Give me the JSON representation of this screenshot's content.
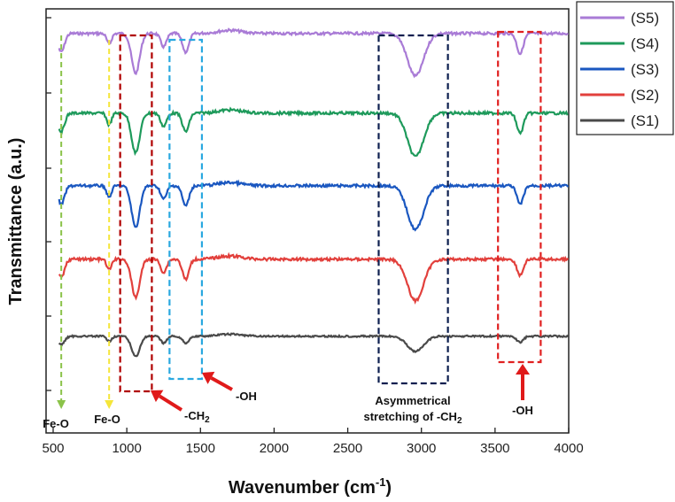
{
  "chart_data": {
    "type": "line",
    "xlabel": "Wavenumber (cm",
    "xlabel_sup": "-1",
    "xlabel_suffix": ")",
    "ylabel": "Transmittance (a.u.)",
    "xlim": [
      500,
      4000
    ],
    "xticks": [
      500,
      1000,
      1500,
      2000,
      2500,
      3000,
      3500,
      4000
    ],
    "y_tick_labels": "none",
    "legend_position": "top-right",
    "series": [
      {
        "name": "(S5)",
        "color": "#a97bd6",
        "baseline": 1.02,
        "bands": [
          [
            555,
            0.35,
            22
          ],
          [
            880,
            0.2,
            16
          ],
          [
            1060,
            0.75,
            28
          ],
          [
            1250,
            0.25,
            20
          ],
          [
            1400,
            0.35,
            22
          ],
          [
            2960,
            0.8,
            55
          ],
          [
            3670,
            0.38,
            22
          ]
        ]
      },
      {
        "name": "(S4)",
        "color": "#1e9a5b",
        "baseline": 1.02,
        "bands": [
          [
            555,
            0.35,
            22
          ],
          [
            880,
            0.22,
            16
          ],
          [
            1060,
            0.75,
            28
          ],
          [
            1250,
            0.25,
            20
          ],
          [
            1400,
            0.35,
            22
          ],
          [
            2960,
            0.82,
            55
          ],
          [
            3670,
            0.38,
            22
          ]
        ]
      },
      {
        "name": "(S3)",
        "color": "#1a57c0",
        "baseline": 1.02,
        "bands": [
          [
            555,
            0.35,
            22
          ],
          [
            880,
            0.22,
            16
          ],
          [
            1060,
            0.78,
            28
          ],
          [
            1250,
            0.25,
            20
          ],
          [
            1400,
            0.38,
            22
          ],
          [
            2960,
            0.82,
            55
          ],
          [
            3670,
            0.35,
            22
          ]
        ]
      },
      {
        "name": "(S2)",
        "color": "#e2403c",
        "baseline": 1.02,
        "bands": [
          [
            555,
            0.35,
            22
          ],
          [
            880,
            0.2,
            16
          ],
          [
            1060,
            0.72,
            28
          ],
          [
            1250,
            0.25,
            20
          ],
          [
            1400,
            0.38,
            22
          ],
          [
            2960,
            0.78,
            55
          ],
          [
            3670,
            0.3,
            22
          ]
        ]
      },
      {
        "name": "(S1)",
        "color": "#4a4a4a",
        "baseline": 1.02,
        "bands": [
          [
            555,
            0.25,
            22
          ],
          [
            880,
            0.15,
            16
          ],
          [
            1060,
            0.6,
            28
          ],
          [
            1250,
            0.2,
            20
          ],
          [
            1400,
            0.2,
            22
          ],
          [
            2960,
            0.45,
            55
          ],
          [
            3670,
            0.18,
            22
          ]
        ]
      }
    ],
    "annotations": [
      {
        "text": "Fe-O",
        "kind": "arrow-line",
        "x": 555,
        "color": "#8bc34a"
      },
      {
        "text": "Fe-O",
        "kind": "arrow-line",
        "x": 880,
        "color": "#f5e63a"
      },
      {
        "text": "-CH",
        "sub": "2",
        "kind": "box",
        "x_range": [
          955,
          1170
        ],
        "color": "#b00000"
      },
      {
        "text": "-OH",
        "kind": "box",
        "x_range": [
          1290,
          1510
        ],
        "color": "#29a8e0"
      },
      {
        "text_lines": [
          "Asymmetrical",
          "stretching of -CH"
        ],
        "sub": "2",
        "kind": "box",
        "x_range": [
          2710,
          3180
        ],
        "color": "#0d1f4f"
      },
      {
        "text": "-OH",
        "kind": "box",
        "x_range": [
          3520,
          3810
        ],
        "color": "#e02020"
      }
    ]
  }
}
